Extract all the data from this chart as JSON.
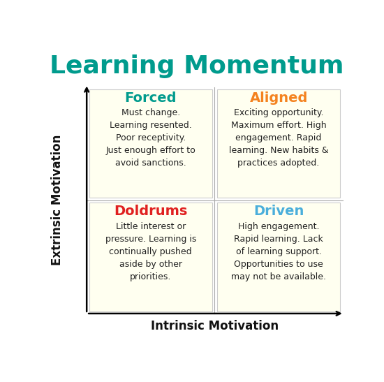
{
  "title": "Learning Momentum",
  "title_color": "#009B8D",
  "title_fontsize": 26,
  "xlabel": "Intrinsic Motivation",
  "ylabel": "Extrinsic Motivation",
  "axis_label_fontsize": 12,
  "background_color": "#ffffff",
  "cell_bg_color": "#FFFFF0",
  "quadrants": [
    {
      "label": "Forced",
      "label_color": "#009B8D",
      "text": "Must change.\nLearning resented.\nPoor receptivity.\nJust enough effort to\navoid sanctions.",
      "text_color": "#222222",
      "position": "top-left"
    },
    {
      "label": "Aligned",
      "label_color": "#F4821F",
      "text": "Exciting opportunity.\nMaximum effort. High\nengagement. Rapid\nlearning. New habits &\npractices adopted.",
      "text_color": "#222222",
      "position": "top-right"
    },
    {
      "label": "Doldrums",
      "label_color": "#E02020",
      "text": "Little interest or\npressure. Learning is\ncontinually pushed\naside by other\npriorities.",
      "text_color": "#222222",
      "position": "bottom-left"
    },
    {
      "label": "Driven",
      "label_color": "#4AAEDB",
      "text": "High engagement.\nRapid learning. Lack\nof learning support.\nOpportunities to use\nmay not be available.",
      "text_color": "#222222",
      "position": "bottom-right"
    }
  ]
}
